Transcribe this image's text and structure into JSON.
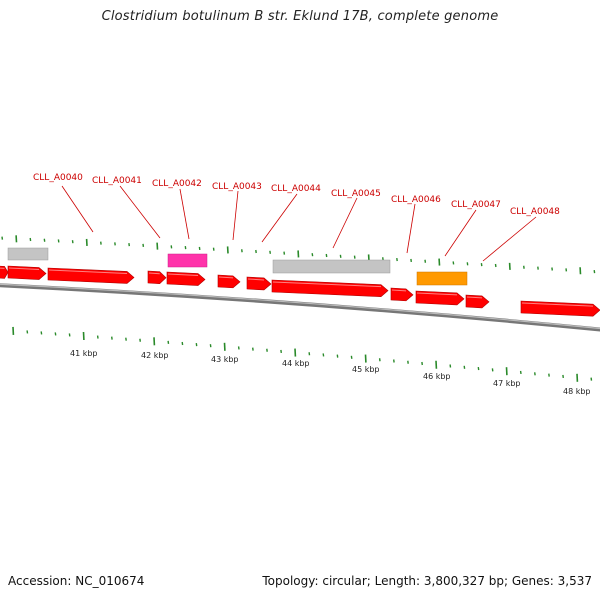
{
  "title": "Clostridium botulinum B str. Eklund 17B, complete genome",
  "footer": {
    "accession": "Accession: NC_010674",
    "summary": "Topology: circular; Length: 3,800,327 bp; Genes: 3,537"
  },
  "colors": {
    "cds": "#ff0000",
    "gray_feature": "#c8c8c8",
    "pink_feature": "#ff33aa",
    "orange_feature": "#ff9900",
    "label": "#cc0000",
    "tick": "#2a8a2a",
    "backbone": "#888888"
  },
  "gene_labels": [
    {
      "text": "CLL_A0040"
    },
    {
      "text": "CLL_A0041"
    },
    {
      "text": "CLL_A0042"
    },
    {
      "text": "CLL_A0043"
    },
    {
      "text": "CLL_A0044"
    },
    {
      "text": "CLL_A0045"
    },
    {
      "text": "CLL_A0046"
    },
    {
      "text": "CLL_A0047"
    },
    {
      "text": "CLL_A0048"
    }
  ],
  "kbp_labels": [
    "41 kbp",
    "42 kbp",
    "43 kbp",
    "44 kbp",
    "45 kbp",
    "46 kbp",
    "47 kbp",
    "48 kbp"
  ]
}
